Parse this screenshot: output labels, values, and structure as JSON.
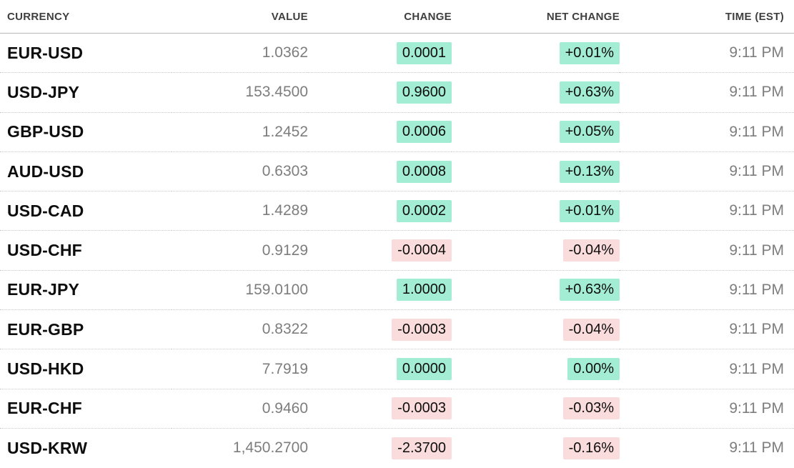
{
  "colors": {
    "positive_bg": "#A2EDD4",
    "negative_bg": "#FBDCDC",
    "header_text": "#3F3F3F",
    "text_primary": "#0D0D0D",
    "text_muted": "#7D7D7D"
  },
  "table": {
    "columns": [
      {
        "label": "CURRENCY"
      },
      {
        "label": "VALUE"
      },
      {
        "label": "CHANGE"
      },
      {
        "label": "NET CHANGE"
      },
      {
        "label": "TIME (EST)"
      }
    ],
    "rows": [
      {
        "currency": "EUR-USD",
        "value": "1.0362",
        "change": "0.0001",
        "net_change": "+0.01%",
        "time": "9:11 PM",
        "direction": "up"
      },
      {
        "currency": "USD-JPY",
        "value": "153.4500",
        "change": "0.9600",
        "net_change": "+0.63%",
        "time": "9:11 PM",
        "direction": "up"
      },
      {
        "currency": "GBP-USD",
        "value": "1.2452",
        "change": "0.0006",
        "net_change": "+0.05%",
        "time": "9:11 PM",
        "direction": "up"
      },
      {
        "currency": "AUD-USD",
        "value": "0.6303",
        "change": "0.0008",
        "net_change": "+0.13%",
        "time": "9:11 PM",
        "direction": "up"
      },
      {
        "currency": "USD-CAD",
        "value": "1.4289",
        "change": "0.0002",
        "net_change": "+0.01%",
        "time": "9:11 PM",
        "direction": "up"
      },
      {
        "currency": "USD-CHF",
        "value": "0.9129",
        "change": "-0.0004",
        "net_change": "-0.04%",
        "time": "9:11 PM",
        "direction": "down"
      },
      {
        "currency": "EUR-JPY",
        "value": "159.0100",
        "change": "1.0000",
        "net_change": "+0.63%",
        "time": "9:11 PM",
        "direction": "up"
      },
      {
        "currency": "EUR-GBP",
        "value": "0.8322",
        "change": "-0.0003",
        "net_change": "-0.04%",
        "time": "9:11 PM",
        "direction": "down"
      },
      {
        "currency": "USD-HKD",
        "value": "7.7919",
        "change": "0.0000",
        "net_change": "0.00%",
        "time": "9:11 PM",
        "direction": "up"
      },
      {
        "currency": "EUR-CHF",
        "value": "0.9460",
        "change": "-0.0003",
        "net_change": "-0.03%",
        "time": "9:11 PM",
        "direction": "down"
      },
      {
        "currency": "USD-KRW",
        "value": "1,450.2700",
        "change": "-2.3700",
        "net_change": "-0.16%",
        "time": "9:11 PM",
        "direction": "down"
      }
    ]
  }
}
